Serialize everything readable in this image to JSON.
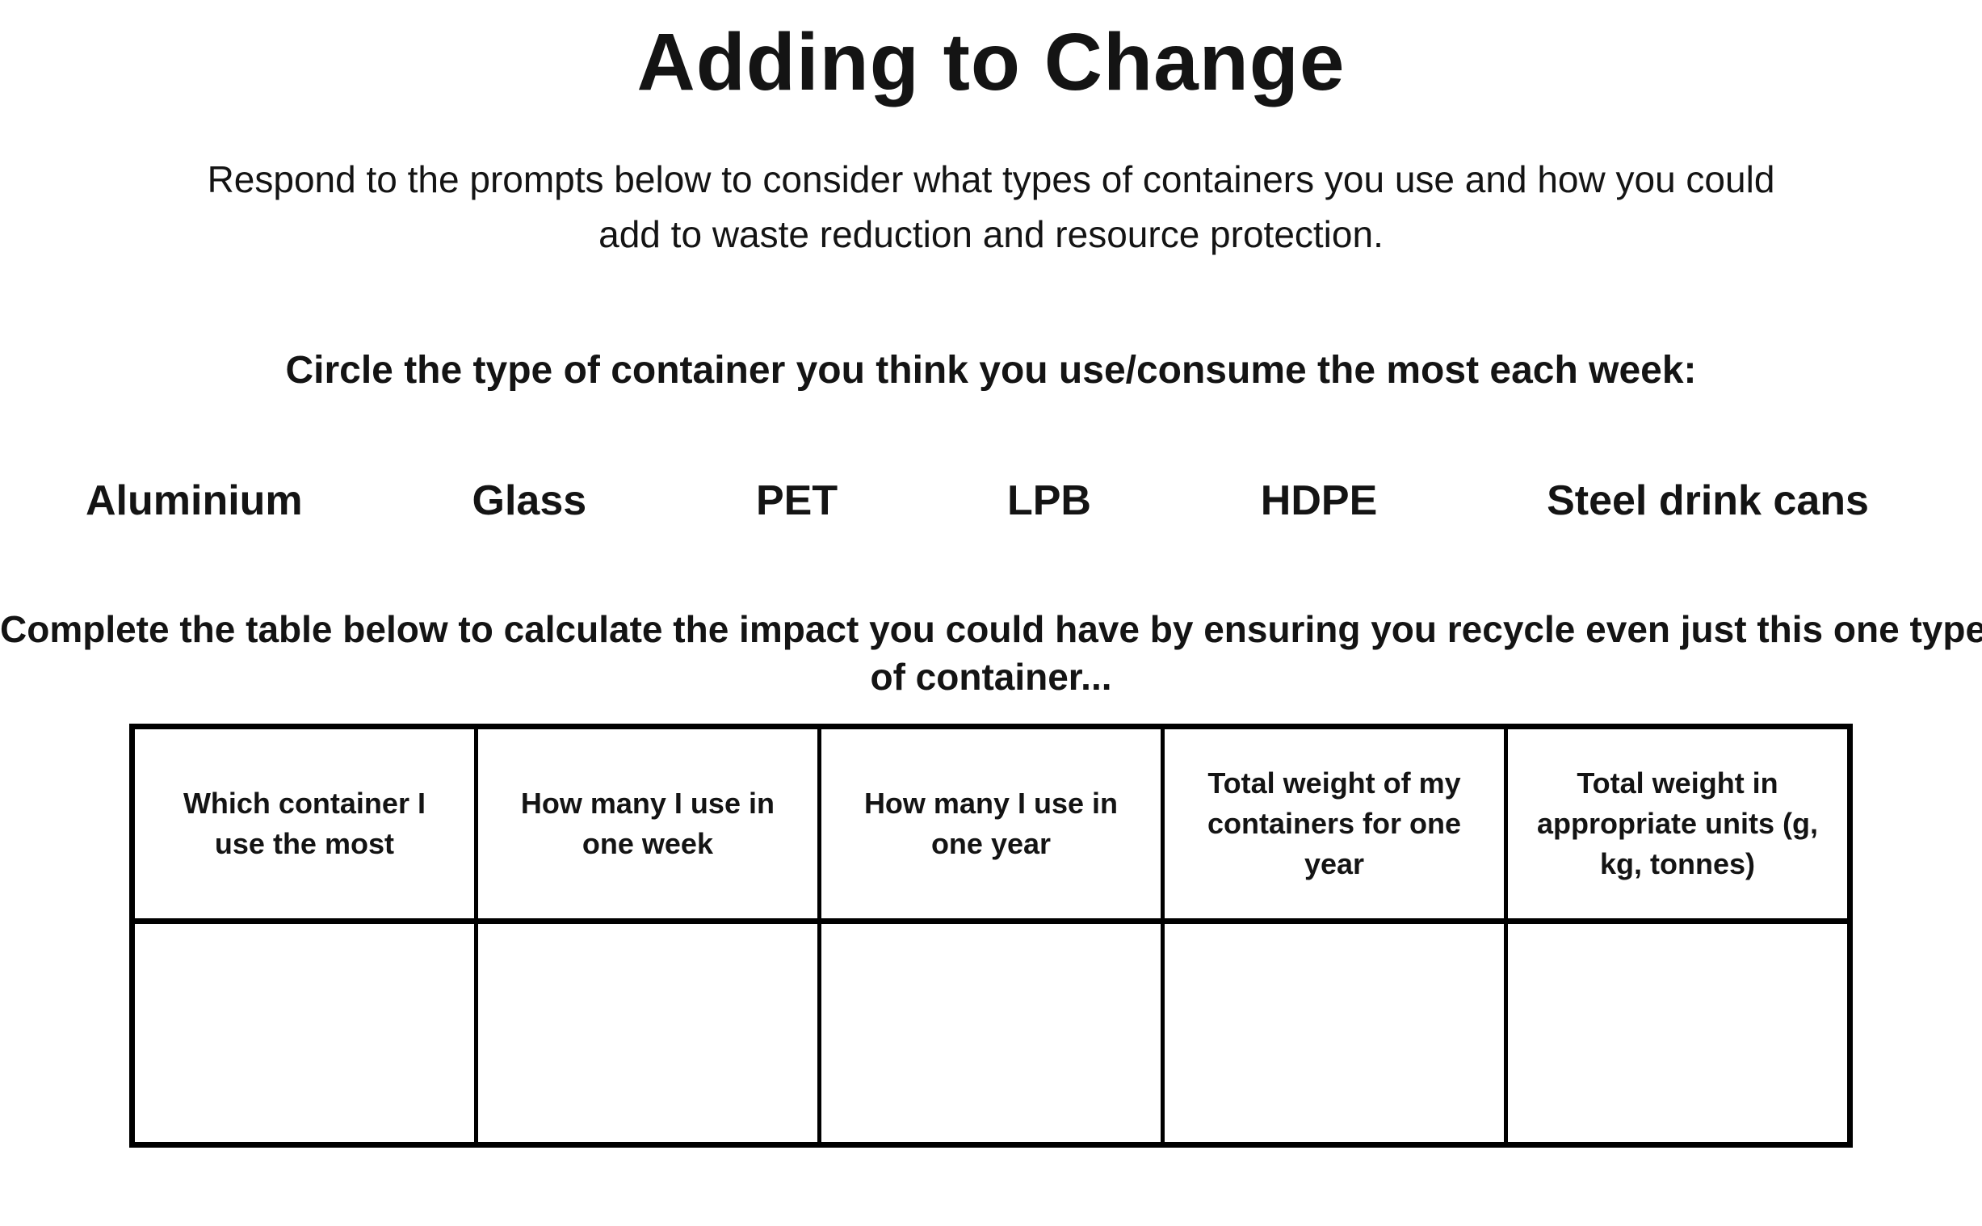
{
  "header": {
    "title": "Adding to Change",
    "subtitle_lines": [
      "Respond to the prompts below to consider what types of containers you use and how you could",
      "add to waste reduction and resource protection."
    ]
  },
  "circle_section": {
    "prompt": "Circle the type of container you think you use/consume the most each week:",
    "options": [
      "Aluminium",
      "Glass",
      "PET",
      "LPB",
      "HDPE",
      "Steel drink cans"
    ]
  },
  "table_section": {
    "prompt_lines": [
      "Complete the table below to calculate the impact you could have by ensuring you recycle even just this one type",
      "of container..."
    ],
    "headers": [
      "Which container I use the most",
      "How many I use in one week",
      "How many I use in one year",
      "Total weight of my containers for one year",
      "Total weight in appropriate units (g, kg, tonnes)"
    ],
    "row_values": [
      "",
      "",
      "",
      "",
      ""
    ]
  },
  "colors": {
    "text": "#141414",
    "background": "#ffffff",
    "table_border": "#000000"
  }
}
